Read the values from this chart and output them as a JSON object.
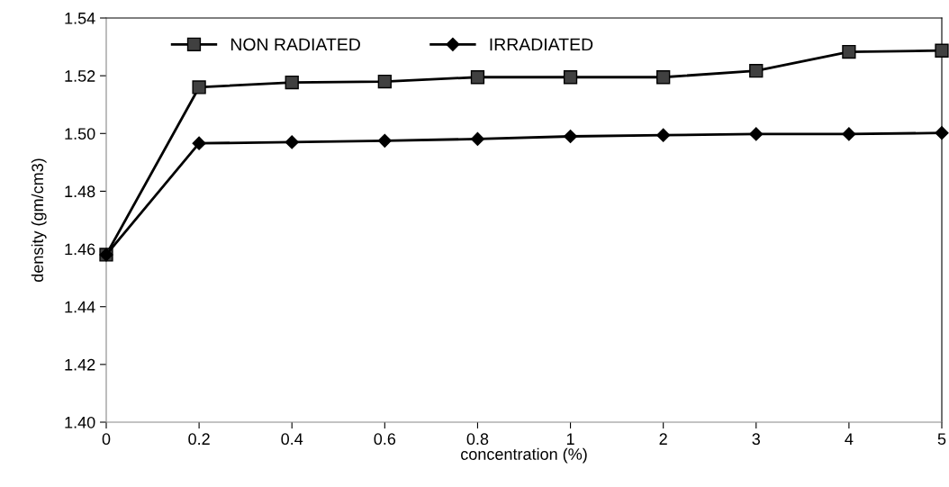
{
  "chart_data": {
    "type": "line",
    "xlabel": "concentration (%)",
    "ylabel": "density (gm/cm3)",
    "categories": [
      "0",
      "0.2",
      "0.4",
      "0.6",
      "0.8",
      "1",
      "2",
      "3",
      "4",
      "5"
    ],
    "series": [
      {
        "name": "NON RADIATED",
        "color": "#000000",
        "marker": "square",
        "values": [
          1.458,
          1.516,
          1.5177,
          1.518,
          1.5195,
          1.5195,
          1.5195,
          1.5217,
          1.5283,
          1.5287
        ]
      },
      {
        "name": "IRRADIATED",
        "color": "#000000",
        "marker": "diamond",
        "values": [
          1.458,
          1.4966,
          1.497,
          1.4975,
          1.4981,
          1.499,
          1.4994,
          1.4998,
          1.4998,
          1.5002
        ]
      }
    ],
    "ylim": [
      1.4,
      1.54
    ],
    "yticks": [
      {
        "value": 1.4,
        "label": "1.40"
      },
      {
        "value": 1.42,
        "label": "1.42"
      },
      {
        "value": 1.44,
        "label": "1.44"
      },
      {
        "value": 1.46,
        "label": "1.46"
      },
      {
        "value": 1.48,
        "label": "1.48"
      },
      {
        "value": 1.5,
        "label": "1.50"
      },
      {
        "value": 1.52,
        "label": "1.52"
      },
      {
        "value": 1.54,
        "label": "1.54"
      }
    ],
    "grid": false,
    "legend": "top left",
    "line_style": "solid"
  }
}
